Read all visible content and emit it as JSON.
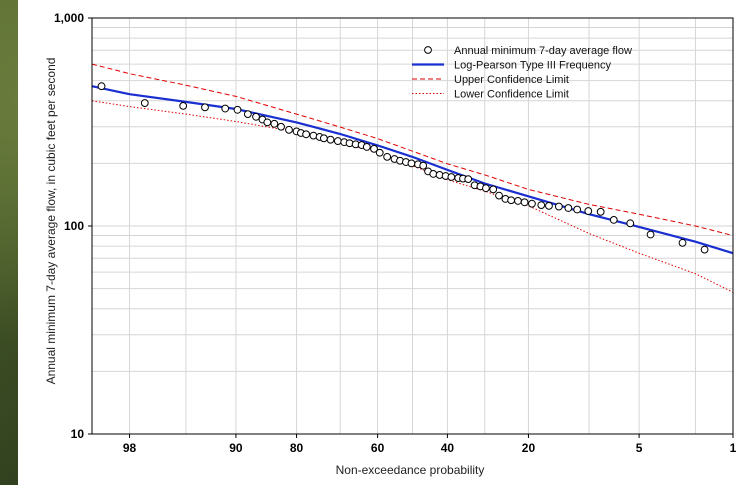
{
  "chart_data": {
    "type": "scatter",
    "xlabel": "Non-exceedance probability",
    "ylabel": "Annual minimum 7-day average flow, in cubic feet per second",
    "x_scale": "normal-probability (reversed)",
    "y_scale": "log",
    "xlim": [
      99,
      1
    ],
    "ylim": [
      10,
      1000
    ],
    "grid": true,
    "legend_position": "top-right",
    "x_ticks": [
      "98",
      "90",
      "80",
      "60",
      "40",
      "20",
      "5",
      "1"
    ],
    "x_tick_values": [
      98,
      90,
      80,
      60,
      40,
      20,
      5,
      1
    ],
    "y_ticks": [
      "10",
      "100",
      "1,000"
    ],
    "y_tick_values": [
      10,
      100,
      1000
    ],
    "colors": {
      "frequency_curve": "#1a2fd0",
      "upper_limit": "#e00000",
      "lower_limit": "#e00000",
      "markers": "#000000"
    },
    "series": [
      {
        "name": "Annual minimum 7-day average flow",
        "kind": "points",
        "x": [
          98.8,
          97.4,
          95.2,
          93.4,
          91.3,
          89.8,
          88.4,
          87.2,
          86.2,
          85.4,
          84.2,
          83.0,
          81.5,
          80.0,
          79.1,
          78.0,
          76.4,
          75.0,
          74.0,
          72.4,
          70.6,
          69.0,
          67.6,
          66.0,
          64.4,
          63.0,
          61.0,
          59.4,
          57.3,
          55.2,
          53.6,
          51.9,
          50.3,
          48.4,
          46.9,
          45.5,
          44.0,
          42.2,
          40.5,
          38.9,
          37.0,
          35.7,
          34.3,
          32.6,
          31.1,
          29.7,
          27.9,
          26.5,
          25.0,
          23.7,
          22.2,
          20.8,
          19.3,
          17.5,
          16.1,
          14.4,
          12.9,
          11.6,
          10.1,
          8.6,
          7.2,
          5.7,
          4.2,
          2.5,
          1.7
        ],
        "y": [
          470,
          390,
          378,
          372,
          367,
          362,
          345,
          335,
          325,
          315,
          310,
          300,
          290,
          285,
          280,
          276,
          272,
          268,
          264,
          260,
          256,
          253,
          250,
          247,
          245,
          240,
          235,
          225,
          215,
          210,
          206,
          203,
          200,
          198,
          195,
          183,
          178,
          176,
          174,
          172,
          170,
          169,
          168,
          157,
          155,
          152,
          150,
          140,
          135,
          133,
          132,
          130,
          128,
          126,
          125,
          124,
          122,
          120,
          118,
          117,
          107,
          103,
          91,
          83,
          77
        ]
      },
      {
        "name": "Log-Pearson Type III Frequency",
        "kind": "line",
        "x": [
          99,
          98,
          95,
          90,
          80,
          70,
          60,
          50,
          40,
          30,
          20,
          10,
          5,
          2,
          1
        ],
        "y": [
          470,
          430,
          395,
          365,
          315,
          277,
          244,
          215,
          186,
          160,
          139,
          114,
          99,
          84,
          74
        ]
      },
      {
        "name": "Upper Confidence Limit",
        "kind": "dashed",
        "x": [
          99,
          98,
          95,
          90,
          80,
          70,
          60,
          50,
          40,
          30,
          20,
          10,
          5,
          2,
          1
        ],
        "y": [
          600,
          540,
          475,
          420,
          345,
          299,
          263,
          229,
          199,
          176,
          150,
          127,
          114,
          100,
          90
        ]
      },
      {
        "name": "Lower Confidence Limit",
        "kind": "dotted",
        "x": [
          99,
          98,
          95,
          90,
          80,
          70,
          60,
          50,
          40,
          30,
          20,
          10,
          5,
          2,
          1
        ],
        "y": [
          400,
          375,
          345,
          318,
          283,
          253,
          225,
          195,
          167,
          147,
          125,
          92,
          74,
          59,
          48
        ]
      }
    ]
  }
}
